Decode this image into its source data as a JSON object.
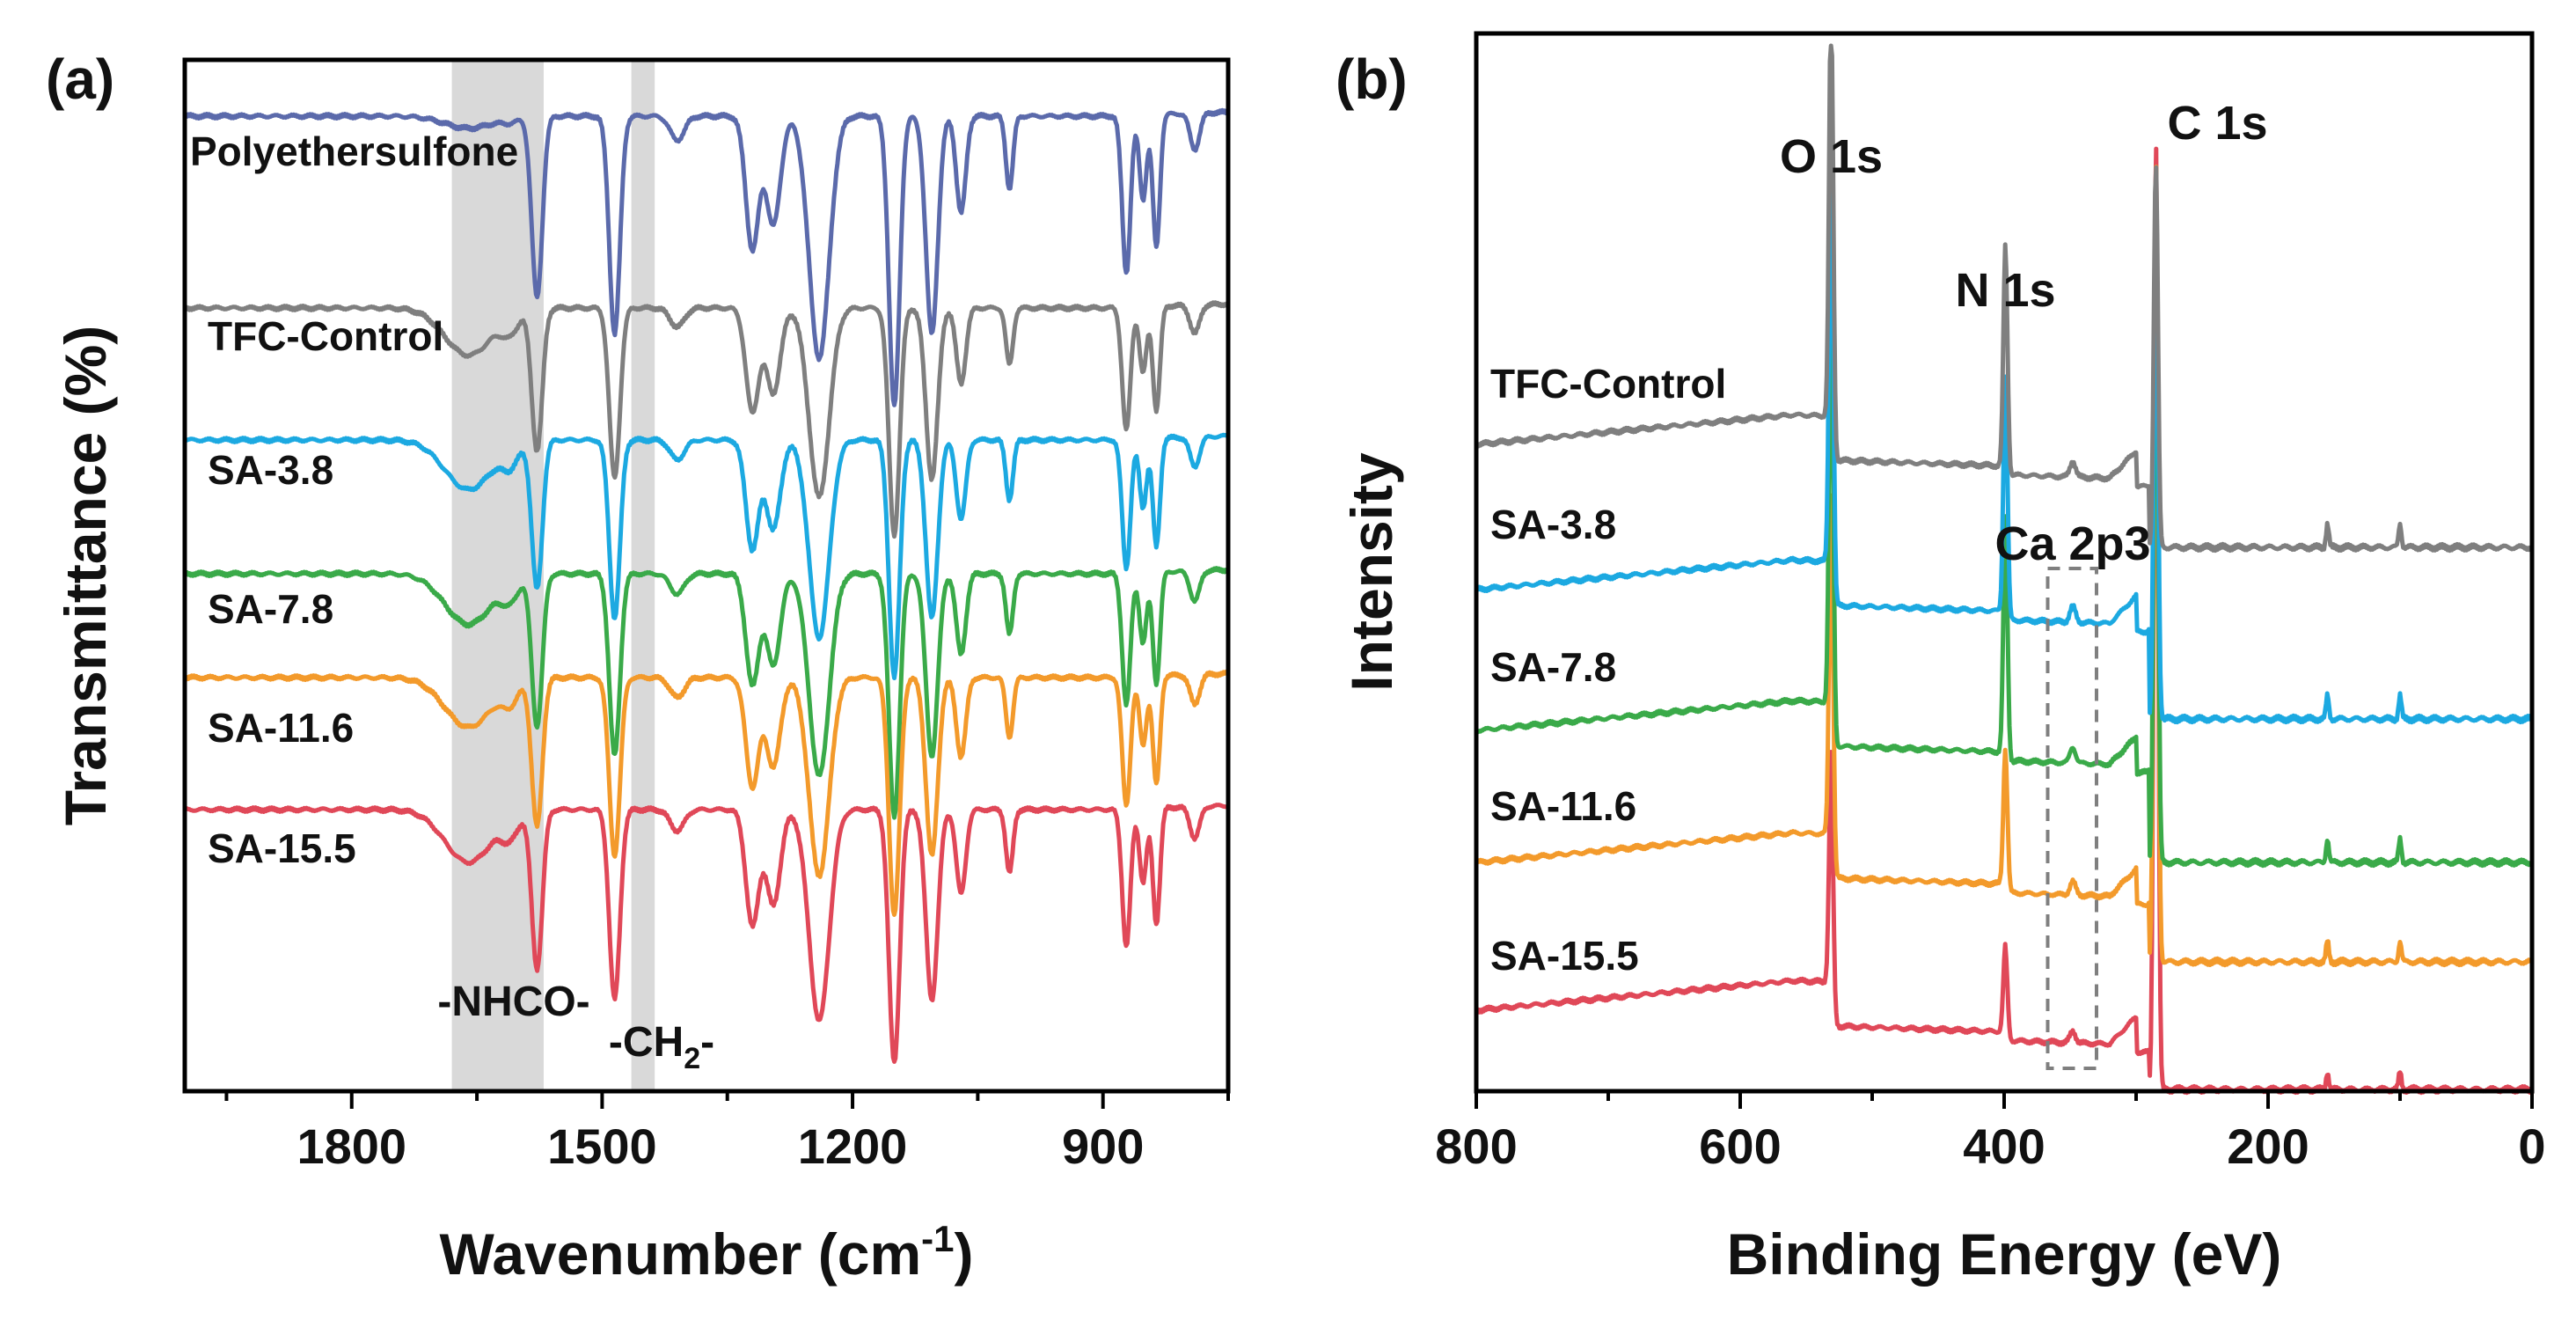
{
  "chart_data": [
    {
      "type": "line",
      "panel_label": "(a)",
      "title": "",
      "xlabel": "Wavenumber (cm",
      "xlabel_sup": "-1",
      "xlabel_end": ")",
      "ylabel": "Transmittance (%)",
      "xlim": [
        2000,
        750
      ],
      "x_reversed": true,
      "xticks": [
        1800,
        1500,
        1200,
        900
      ],
      "xtick_labels": [
        "1800",
        "1500",
        "1200",
        "900"
      ],
      "yticks_shown": false,
      "shaded_regions": [
        {
          "label": "-NHCO-",
          "from": 1680,
          "to": 1570,
          "color": "#d9d9d9"
        },
        {
          "label": "-CH",
          "label_sub": "2",
          "label_end": "-",
          "from": 1465,
          "to": 1437,
          "color": "#d9d9d9"
        }
      ],
      "series": [
        {
          "name": "Polyethersulfone",
          "color": "#5b6aab",
          "offset": 5
        },
        {
          "name": "TFC-Control",
          "color": "#7f7f7f",
          "offset": 4
        },
        {
          "name": "SA-3.8",
          "color": "#1ca9e1",
          "offset": 3
        },
        {
          "name": "SA-7.8",
          "color": "#3aaa49",
          "offset": 2
        },
        {
          "name": "SA-11.6",
          "color": "#f39a2b",
          "offset": 1
        },
        {
          "name": "SA-15.5",
          "color": "#e04858",
          "offset": 0
        }
      ],
      "absorption_bands": [
        {
          "x": 1660,
          "depth": 0.25,
          "width": 40
        },
        {
          "x": 1610,
          "depth": 0.1,
          "width": 14
        },
        {
          "x": 1578,
          "depth": 0.75,
          "width": 9
        },
        {
          "x": 1485,
          "depth": 0.9,
          "width": 9
        },
        {
          "x": 1410,
          "depth": 0.1,
          "width": 12
        },
        {
          "x": 1320,
          "depth": 0.55,
          "width": 11
        },
        {
          "x": 1295,
          "depth": 0.45,
          "width": 12
        },
        {
          "x": 1240,
          "depth": 1.0,
          "width": 17
        },
        {
          "x": 1150,
          "depth": 1.2,
          "width": 9
        },
        {
          "x": 1105,
          "depth": 0.9,
          "width": 10
        },
        {
          "x": 1070,
          "depth": 0.4,
          "width": 8
        },
        {
          "x": 1012,
          "depth": 0.3,
          "width": 6
        },
        {
          "x": 872,
          "depth": 0.65,
          "width": 7
        },
        {
          "x": 852,
          "depth": 0.35,
          "width": 6
        },
        {
          "x": 836,
          "depth": 0.55,
          "width": 6
        },
        {
          "x": 790,
          "depth": 0.15,
          "width": 8
        }
      ]
    },
    {
      "type": "line",
      "panel_label": "(b)",
      "title": "",
      "xlabel": "Binding Energy (eV)",
      "ylabel": "Intensity",
      "xlim": [
        800,
        0
      ],
      "x_reversed": true,
      "xticks": [
        800,
        600,
        400,
        200,
        0
      ],
      "xtick_labels": [
        "800",
        "600",
        "400",
        "200",
        "0"
      ],
      "yticks_shown": false,
      "peak_labels": [
        {
          "label": "O 1s",
          "x": 531
        },
        {
          "label": "N 1s",
          "x": 399
        },
        {
          "label": "C 1s",
          "x": 285
        }
      ],
      "region_box": {
        "label": "Ca 2p3",
        "from": 367,
        "to": 330
      },
      "series": [
        {
          "name": "TFC-Control",
          "color": "#7f7f7f",
          "offset": 4,
          "o1s": 0.55,
          "n1s": 0.28,
          "c1s": 1.0
        },
        {
          "name": "SA-3.8",
          "color": "#1ca9e1",
          "offset": 3,
          "o1s": 0.55,
          "n1s": 0.3,
          "c1s": 1.0
        },
        {
          "name": "SA-7.8",
          "color": "#3aaa49",
          "offset": 2,
          "o1s": 0.55,
          "n1s": 0.3,
          "c1s": 1.0
        },
        {
          "name": "SA-11.6",
          "color": "#f39a2b",
          "offset": 1,
          "o1s": 0.5,
          "n1s": 0.2,
          "c1s": 1.0
        },
        {
          "name": "SA-15.5",
          "color": "#e04858",
          "offset": 0,
          "o1s": 0.4,
          "n1s": 0.15,
          "c1s": 1.0
        }
      ]
    }
  ]
}
